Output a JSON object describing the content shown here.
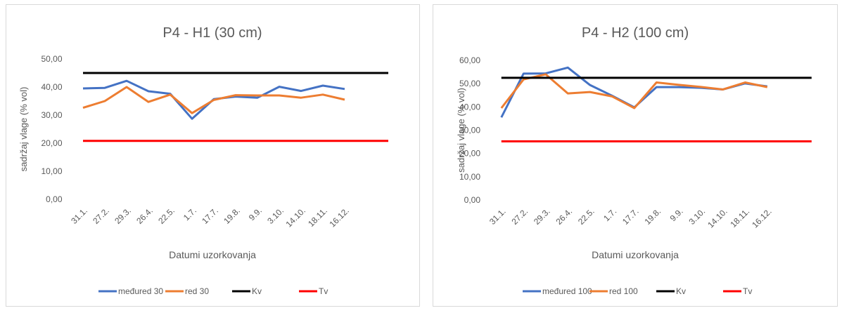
{
  "chart_data": [
    {
      "type": "line",
      "title": "P4 - H1 (30 cm)",
      "x_label": "Datumi uzorkovanja",
      "y_label": "sadržaj vlage (% vol)",
      "categories": [
        "31.1.",
        "27.2.",
        "29.3.",
        "26.4.",
        "22.5.",
        "1.7.",
        "17.7.",
        "19.8.",
        "9.9.",
        "3.10.",
        "14.10.",
        "18.11.",
        "16.12.",
        null,
        null
      ],
      "series": [
        {
          "name": "međured 30",
          "color": "#4472c4",
          "values": [
            39.5,
            39.7,
            42.2,
            38.5,
            37.6,
            28.7,
            35.7,
            36.6,
            36.2,
            40.1,
            38.6,
            40.5,
            39.3,
            null,
            null
          ]
        },
        {
          "name": "red 30",
          "color": "#ed7d31",
          "values": [
            32.6,
            35,
            40,
            34.7,
            37.3,
            30.7,
            35.4,
            37.1,
            37,
            37,
            36.2,
            37.3,
            35.5,
            null,
            null
          ]
        },
        {
          "name": "Kv",
          "color": "#000000",
          "values": [
            45,
            45,
            45,
            45,
            45,
            45,
            45,
            45,
            45,
            45,
            45,
            45,
            45,
            45,
            45
          ]
        },
        {
          "name": "Tv",
          "color": "#ff0000",
          "values": [
            20.8,
            20.8,
            20.8,
            20.8,
            20.8,
            20.8,
            20.8,
            20.8,
            20.8,
            20.8,
            20.8,
            20.8,
            20.8,
            20.8,
            20.8
          ]
        }
      ],
      "ylim": [
        0,
        50
      ],
      "yticks": [
        {
          "value": 0,
          "label": "0,00"
        },
        {
          "value": 10,
          "label": "10,00"
        },
        {
          "value": 20,
          "label": "20,00"
        },
        {
          "value": 30,
          "label": "30,00"
        },
        {
          "value": 40,
          "label": "40,00"
        },
        {
          "value": 50,
          "label": "50,00"
        }
      ],
      "grid": false,
      "legend": "bottom"
    },
    {
      "type": "line",
      "title": "P4 - H2 (100 cm)",
      "x_label": "Datumi uzorkovanja",
      "y_label": "sadržaj vlage (% vol)",
      "categories": [
        "31.1.",
        "27.2.",
        "29.3.",
        "26.4.",
        "22.5.",
        "1.7.",
        "17.7.",
        "19.8.",
        "9.9.",
        "3.10.",
        "14.10.",
        "18.11.",
        "16.12.",
        null,
        null
      ],
      "series": [
        {
          "name": "međured 100",
          "color": "#4472c4",
          "values": [
            35.5,
            54.3,
            54.4,
            56.9,
            49.4,
            44.8,
            39.8,
            48.5,
            48.5,
            48.2,
            47.5,
            50.1,
            48.8,
            null,
            null
          ]
        },
        {
          "name": "red 100",
          "color": "#ed7d31",
          "values": [
            39.5,
            51.8,
            54,
            45.8,
            46.4,
            44.5,
            39.5,
            50.5,
            49.5,
            48.6,
            47.5,
            50.5,
            48.5,
            null,
            null
          ]
        },
        {
          "name": "Kv",
          "color": "#000000",
          "values": [
            52.5,
            52.5,
            52.5,
            52.5,
            52.5,
            52.5,
            52.5,
            52.5,
            52.5,
            52.5,
            52.5,
            52.5,
            52.5,
            52.5,
            52.5
          ]
        },
        {
          "name": "Tv",
          "color": "#ff0000",
          "values": [
            25.2,
            25.2,
            25.2,
            25.2,
            25.2,
            25.2,
            25.2,
            25.2,
            25.2,
            25.2,
            25.2,
            25.2,
            25.2,
            25.2,
            25.2
          ]
        }
      ],
      "ylim": [
        0,
        60
      ],
      "yticks": [
        {
          "value": 0,
          "label": "0,00"
        },
        {
          "value": 10,
          "label": "10,00"
        },
        {
          "value": 20,
          "label": "20,00"
        },
        {
          "value": 30,
          "label": "30,00"
        },
        {
          "value": 40,
          "label": "40,00"
        },
        {
          "value": 50,
          "label": "50,00"
        },
        {
          "value": 60,
          "label": "60,00"
        }
      ],
      "grid": false,
      "legend": "bottom"
    }
  ]
}
